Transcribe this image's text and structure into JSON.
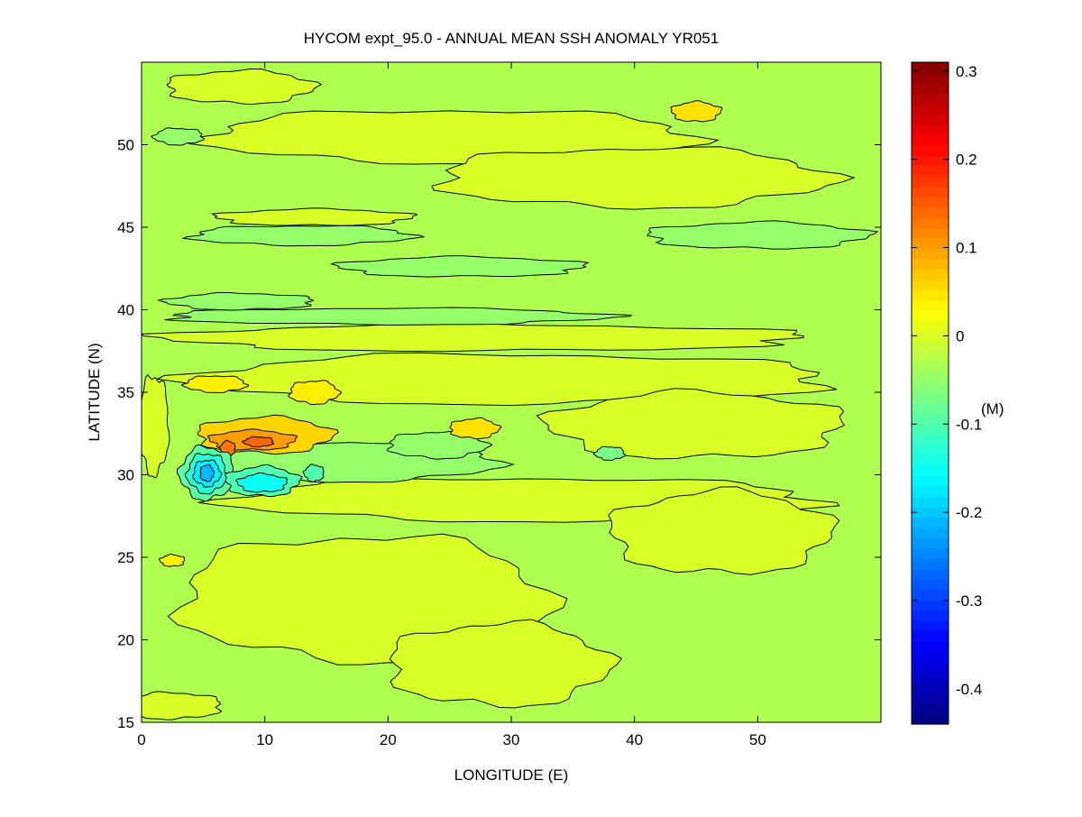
{
  "chart_data": {
    "type": "heatmap",
    "subtype": "filled-contour",
    "title": "HYCOM expt_95.0 - ANNUAL MEAN SSH ANOMALY YR051",
    "xlabel": "LONGITUDE (E)",
    "ylabel": "LATITUDE (N)",
    "xlim": [
      0,
      60
    ],
    "ylim": [
      15,
      55
    ],
    "xticks": [
      0,
      10,
      20,
      30,
      40,
      50
    ],
    "yticks": [
      15,
      20,
      25,
      30,
      35,
      40,
      45,
      50
    ],
    "background_value": -0.03,
    "colorbar": {
      "label": "(M)",
      "colormap": "jet",
      "clim": [
        -0.44,
        0.31
      ],
      "ticks": [
        -0.4,
        -0.3,
        -0.2,
        -0.1,
        0,
        0.1,
        0.2,
        0.3
      ],
      "tick_labels": [
        "-0.4",
        "-0.3",
        "-0.2",
        "-0.1",
        "0",
        "0.1",
        "0.2",
        "0.3"
      ]
    },
    "features": [
      {
        "lon": 25,
        "lat": 50.5,
        "rlon": 20,
        "rlat": 1.6,
        "value": 0.0
      },
      {
        "lon": 40,
        "lat": 48,
        "rlon": 16,
        "rlat": 1.8,
        "value": 0.0
      },
      {
        "lon": 8,
        "lat": 53.5,
        "rlon": 6,
        "rlat": 1.0,
        "value": 0.0
      },
      {
        "lon": 14,
        "lat": 45.6,
        "rlon": 8,
        "rlat": 0.5,
        "value": 0.0
      },
      {
        "lon": 28,
        "lat": 38.3,
        "rlon": 26,
        "rlat": 0.8,
        "value": 0.0
      },
      {
        "lon": 30,
        "lat": 35.8,
        "rlon": 26,
        "rlat": 1.5,
        "value": 0.0
      },
      {
        "lon": 31,
        "lat": 28.5,
        "rlon": 24,
        "rlat": 1.3,
        "value": 0.0
      },
      {
        "lon": 18,
        "lat": 22.5,
        "rlon": 15,
        "rlat": 3.8,
        "value": 0.0
      },
      {
        "lon": 29,
        "lat": 18.5,
        "rlon": 9,
        "rlat": 2.5,
        "value": 0.0
      },
      {
        "lon": 47,
        "lat": 26.5,
        "rlon": 9,
        "rlat": 2.5,
        "value": 0.0
      },
      {
        "lon": 45,
        "lat": 33,
        "rlon": 12,
        "rlat": 2,
        "value": 0.0
      },
      {
        "lon": 2.5,
        "lat": 16,
        "rlon": 4,
        "rlat": 0.8,
        "value": 0.0
      },
      {
        "lon": 1,
        "lat": 33,
        "rlon": 1.2,
        "rlat": 3,
        "value": 0.0
      },
      {
        "lon": 13,
        "lat": 44.5,
        "rlon": 9,
        "rlat": 0.6,
        "value": -0.05
      },
      {
        "lon": 20,
        "lat": 39.6,
        "rlon": 18,
        "rlat": 0.5,
        "value": -0.05
      },
      {
        "lon": 50,
        "lat": 44.5,
        "rlon": 9,
        "rlat": 0.8,
        "value": -0.05
      },
      {
        "lon": 26,
        "lat": 42.6,
        "rlon": 10,
        "rlat": 0.6,
        "value": -0.05
      },
      {
        "lon": 8,
        "lat": 40.5,
        "rlon": 6,
        "rlat": 0.5,
        "value": -0.05
      },
      {
        "lon": 3,
        "lat": 50.5,
        "rlon": 2,
        "rlat": 0.5,
        "value": -0.05
      },
      {
        "lon": 17,
        "lat": 30.8,
        "rlon": 12,
        "rlat": 1.2,
        "value": -0.05
      },
      {
        "lon": 24,
        "lat": 31.8,
        "rlon": 4,
        "rlat": 0.8,
        "value": -0.05
      },
      {
        "lon": 10,
        "lat": 32.4,
        "rlon": 5.5,
        "rlat": 1.1,
        "value": 0.06
      },
      {
        "lon": 9,
        "lat": 32.1,
        "rlon": 3.5,
        "rlat": 0.6,
        "value": 0.1
      },
      {
        "lon": 7,
        "lat": 31.6,
        "rlon": 0.6,
        "rlat": 0.45,
        "value": 0.13
      },
      {
        "lon": 9.5,
        "lat": 32,
        "rlon": 1.2,
        "rlat": 0.3,
        "value": 0.14
      },
      {
        "lon": 6,
        "lat": 35.5,
        "rlon": 2.5,
        "rlat": 0.5,
        "value": 0.04
      },
      {
        "lon": 14,
        "lat": 35,
        "rlon": 2,
        "rlat": 0.7,
        "value": 0.04
      },
      {
        "lon": 27,
        "lat": 32.8,
        "rlon": 2,
        "rlat": 0.6,
        "value": 0.05
      },
      {
        "lon": 45,
        "lat": 52,
        "rlon": 2,
        "rlat": 0.6,
        "value": 0.05
      },
      {
        "lon": 2.5,
        "lat": 24.8,
        "rlon": 1,
        "rlat": 0.35,
        "value": 0.04
      },
      {
        "lon": 5.3,
        "lat": 30.1,
        "rlon": 2.2,
        "rlat": 1.6,
        "value": -0.09
      },
      {
        "lon": 5.3,
        "lat": 30.1,
        "rlon": 1.6,
        "rlat": 1.2,
        "value": -0.13
      },
      {
        "lon": 5.3,
        "lat": 30.1,
        "rlon": 1.1,
        "rlat": 0.8,
        "value": -0.17
      },
      {
        "lon": 5.3,
        "lat": 30.1,
        "rlon": 0.55,
        "rlat": 0.5,
        "value": -0.21
      },
      {
        "lon": 9.8,
        "lat": 29.6,
        "rlon": 3,
        "rlat": 0.9,
        "value": -0.1
      },
      {
        "lon": 9.8,
        "lat": 29.5,
        "rlon": 2,
        "rlat": 0.55,
        "value": -0.15
      },
      {
        "lon": 14,
        "lat": 30.1,
        "rlon": 0.8,
        "rlat": 0.5,
        "value": -0.1
      },
      {
        "lon": 38,
        "lat": 31.3,
        "rlon": 1.2,
        "rlat": 0.4,
        "value": -0.07
      }
    ]
  }
}
